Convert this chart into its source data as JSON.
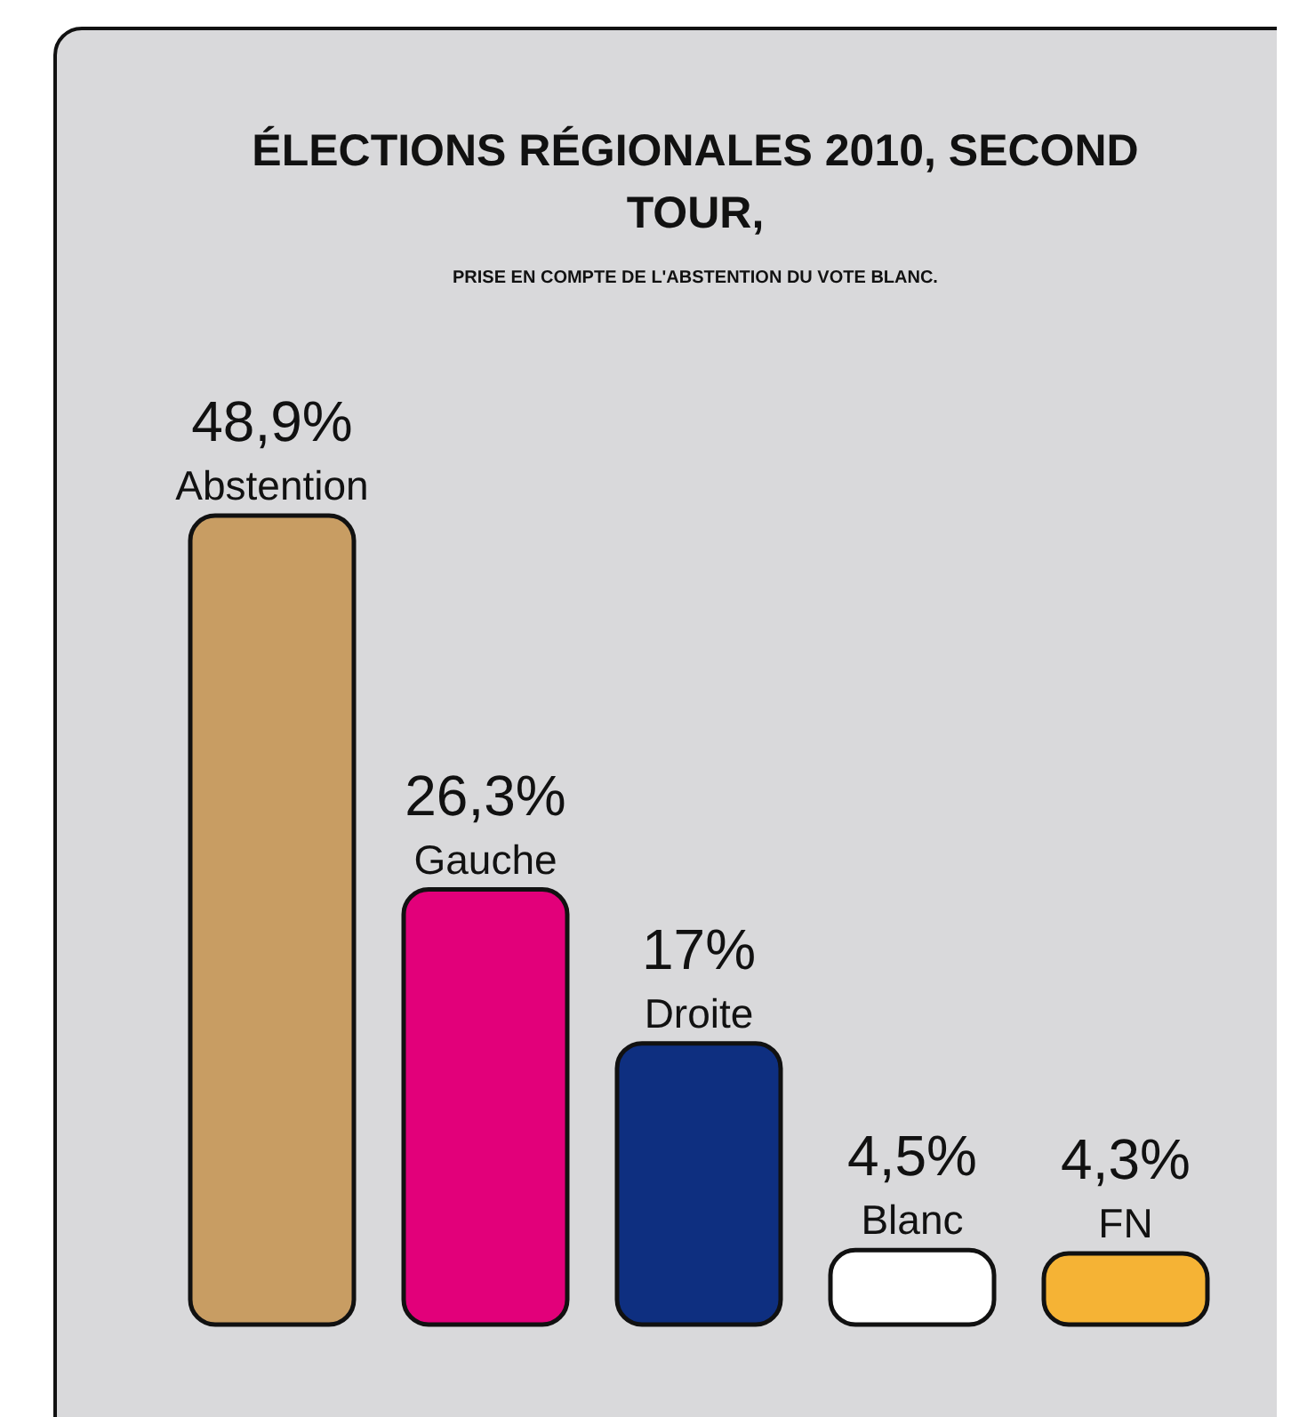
{
  "chart_data": {
    "type": "bar",
    "title": "ÉLECTIONS RÉGIONALES 2010, SECOND TOUR,",
    "subtitle": "PRISE EN COMPTE DE L'ABSTENTION DU VOTE BLANC.",
    "categories": [
      "Abstention",
      "Gauche",
      "Droite",
      "Blanc",
      "FN"
    ],
    "values": [
      48.9,
      26.3,
      17,
      4.5,
      4.3
    ],
    "value_labels": [
      "48,9%",
      "26,3%",
      "17%",
      "4,5%",
      "4,3%"
    ],
    "colors": [
      "#c89d63",
      "#e2007a",
      "#0e2f80",
      "#ffffff",
      "#f5b335"
    ],
    "grid": false,
    "legend": false
  }
}
